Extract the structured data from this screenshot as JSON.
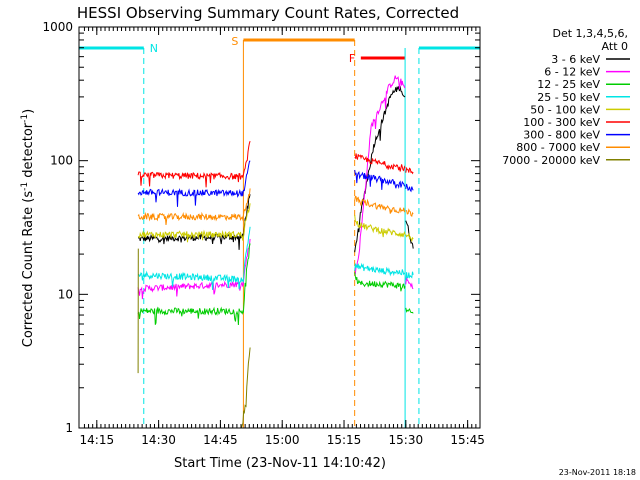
{
  "chart_data": {
    "type": "line",
    "title": "HESSI Observing Summary Count Rates, Corrected",
    "xlabel": "Start Time (23-Nov-11 14:10:42)",
    "ylabel_main": "Corrected Count Rate (s",
    "ylabel_sup1": "-1",
    "ylabel_mid": " detector",
    "ylabel_sup2": "-1",
    "ylabel_end": ")",
    "yscale": "log",
    "xlim": [
      14.178,
      15.8
    ],
    "ylim": [
      1,
      1000
    ],
    "x_ticks": [
      "14:15",
      "14:30",
      "14:45",
      "15:00",
      "15:15",
      "15:30",
      "15:45"
    ],
    "y_ticks": [
      "1",
      "10",
      "100",
      "1000"
    ],
    "legend_header": [
      "Det 1,3,4,5,6,",
      "Att 0"
    ],
    "timestamp": "23-Nov-2011 18:18",
    "series": [
      {
        "name": "3 - 6 keV",
        "color": "#000000",
        "segments": [
          [
            [
              14.417,
              26
            ],
            [
              14.843,
              27
            ],
            [
              14.85,
              36
            ],
            [
              14.87,
              56
            ]
          ],
          [
            [
              15.293,
              20
            ],
            [
              15.31,
              34
            ],
            [
              15.37,
              130
            ],
            [
              15.44,
              310
            ],
            [
              15.465,
              345
            ],
            [
              15.48,
              350
            ],
            [
              15.49,
              310
            ],
            [
              15.497,
              300
            ]
          ],
          [
            [
              15.5,
              36
            ],
            [
              15.53,
              22
            ]
          ]
        ]
      },
      {
        "name": "6 - 12 keV",
        "color": "#ff00ff",
        "segments": [
          [
            [
              14.417,
              11
            ],
            [
              14.843,
              12
            ],
            [
              14.85,
              16
            ],
            [
              14.87,
              26
            ]
          ],
          [
            [
              15.293,
              14
            ],
            [
              15.31,
              20
            ],
            [
              15.36,
              180
            ],
            [
              15.43,
              350
            ],
            [
              15.46,
              420
            ],
            [
              15.48,
              390
            ],
            [
              15.497,
              350
            ]
          ],
          [
            [
              15.5,
              13
            ],
            [
              15.53,
              11
            ]
          ]
        ]
      },
      {
        "name": "12 - 25 keV",
        "color": "#00cc00",
        "segments": [
          [
            [
              14.417,
              7.5
            ],
            [
              14.843,
              7.5
            ],
            [
              14.85,
              12
            ],
            [
              14.87,
              24
            ]
          ],
          [
            [
              15.293,
              14
            ],
            [
              15.31,
              12
            ],
            [
              15.4,
              12
            ],
            [
              15.497,
              11.5
            ]
          ],
          [
            [
              15.5,
              7.5
            ],
            [
              15.53,
              7.2
            ]
          ]
        ]
      },
      {
        "name": "25 - 50 keV",
        "color": "#00e5e5",
        "segments": [
          [
            [
              14.417,
              14
            ],
            [
              14.843,
              13
            ],
            [
              14.85,
              18
            ],
            [
              14.87,
              32
            ]
          ],
          [
            [
              15.293,
              17
            ],
            [
              15.31,
              16
            ],
            [
              15.4,
              15
            ],
            [
              15.497,
              14.5
            ]
          ],
          [
            [
              15.5,
              14
            ],
            [
              15.53,
              14
            ]
          ]
        ]
      },
      {
        "name": "50 - 100 keV",
        "color": "#cccc00",
        "segments": [
          [
            [
              14.417,
              28
            ],
            [
              14.843,
              28
            ],
            [
              14.85,
              34
            ],
            [
              14.87,
              48
            ]
          ],
          [
            [
              15.293,
              38
            ],
            [
              15.31,
              33
            ],
            [
              15.4,
              30
            ],
            [
              15.497,
              28
            ]
          ],
          [
            [
              15.5,
              28
            ],
            [
              15.53,
              26
            ]
          ]
        ]
      },
      {
        "name": "100 - 300 keV",
        "color": "#ff0000",
        "segments": [
          [
            [
              14.417,
              78
            ],
            [
              14.843,
              76
            ],
            [
              14.85,
              86
            ],
            [
              14.87,
              140
            ]
          ],
          [
            [
              15.293,
              110
            ],
            [
              15.31,
              105
            ],
            [
              15.4,
              95
            ],
            [
              15.497,
              88
            ]
          ],
          [
            [
              15.5,
              85
            ],
            [
              15.53,
              82
            ]
          ]
        ]
      },
      {
        "name": "300 - 800 keV",
        "color": "#0000ff",
        "segments": [
          [
            [
              14.417,
              58
            ],
            [
              14.843,
              57
            ],
            [
              14.85,
              66
            ],
            [
              14.87,
              100
            ]
          ],
          [
            [
              15.293,
              82
            ],
            [
              15.31,
              78
            ],
            [
              15.4,
              72
            ],
            [
              15.497,
              65
            ]
          ],
          [
            [
              15.5,
              64
            ],
            [
              15.53,
              60
            ]
          ]
        ]
      },
      {
        "name": "800 - 7000 keV",
        "color": "#ff8c00",
        "segments": [
          [
            [
              14.417,
              38
            ],
            [
              14.843,
              38
            ],
            [
              14.85,
              44
            ],
            [
              14.87,
              62
            ]
          ],
          [
            [
              15.293,
              52
            ],
            [
              15.31,
              50
            ],
            [
              15.4,
              45
            ],
            [
              15.497,
              42
            ]
          ],
          [
            [
              15.5,
              42
            ],
            [
              15.53,
              40
            ]
          ]
        ]
      },
      {
        "name": "7000 - 20000 keV",
        "color": "#808000",
        "segments": [
          [
            [
              14.417,
              2.7
            ],
            [
              14.418,
              22
            ]
          ],
          [
            [
              14.835,
              1
            ],
            [
              14.85,
              1.5
            ],
            [
              14.86,
              2.5
            ],
            [
              14.87,
              4
            ]
          ]
        ]
      }
    ],
    "annotations": {
      "night_label": "N",
      "saa_label": "S",
      "flare_label": "F",
      "night_bars": [
        [
          14.178,
          14.44
        ],
        [
          15.553,
          15.8
        ]
      ],
      "night_lines": [
        14.44,
        15.553
      ],
      "saa_bar": [
        14.843,
        15.293
      ],
      "saa_start_line": 14.843,
      "saa_end_line": 15.293,
      "flare_bar": [
        15.318,
        15.497
      ],
      "gap_line": 15.497
    },
    "colors": {
      "night": "#00e5e5",
      "saa": "#ff8c00",
      "flare": "#ff0000"
    }
  }
}
